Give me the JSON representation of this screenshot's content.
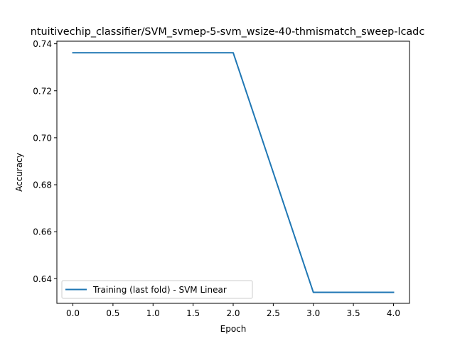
{
  "chart_data": {
    "type": "line",
    "title": "ntuitivechip_classifier/SVM_svmep-5-svm_wsize-40-thmismatch_sweep-lcadc",
    "xlabel": "Epoch",
    "ylabel": "Accuracy",
    "xlim": [
      -0.2,
      4.2
    ],
    "ylim": [
      0.6295,
      0.7411
    ],
    "x_ticks": [
      "0.0",
      "0.5",
      "1.0",
      "1.5",
      "2.0",
      "2.5",
      "3.0",
      "3.5",
      "4.0"
    ],
    "y_ticks": [
      "0.64",
      "0.66",
      "0.68",
      "0.70",
      "0.72",
      "0.74"
    ],
    "grid": false,
    "legend_position": "lower-left",
    "series": [
      {
        "name": "Training (last fold) - SVM Linear",
        "color": "#1f77b4",
        "x": [
          0,
          1,
          2,
          3,
          4
        ],
        "y": [
          0.7362,
          0.7362,
          0.7362,
          0.6342,
          0.6342
        ]
      }
    ]
  }
}
